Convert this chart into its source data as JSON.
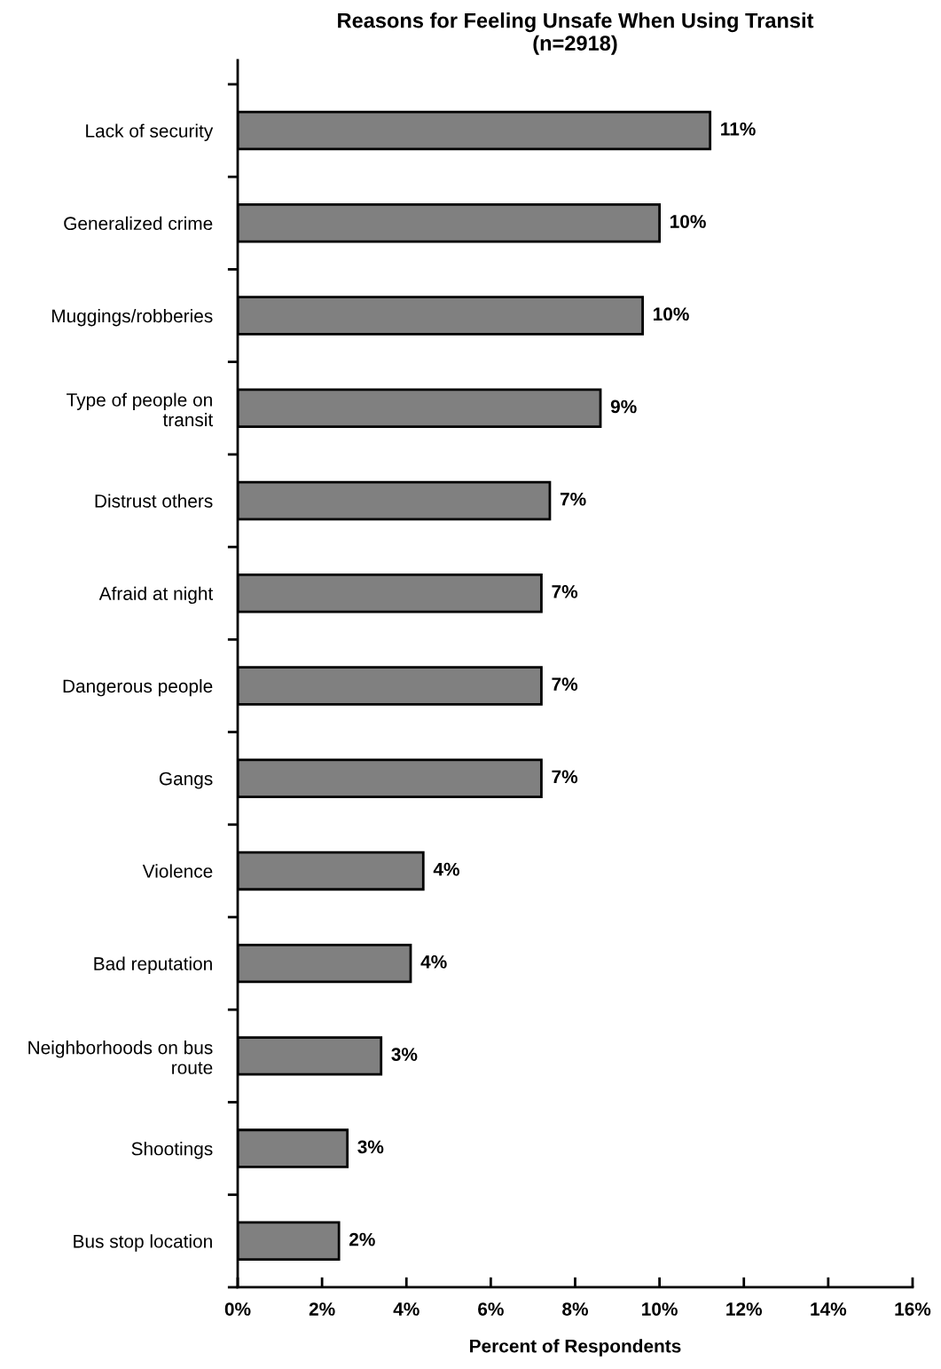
{
  "chart_data": {
    "type": "bar",
    "orientation": "horizontal",
    "title": "Reasons for Feeling Unsafe When Using Transit\n(n=2918)",
    "xlabel": "Percent of Respondents",
    "categories": [
      "Lack of security",
      "Generalized crime",
      "Muggings/robberies",
      "Type of people on\ntransit",
      "Distrust others",
      "Afraid at night",
      "Dangerous people",
      "Gangs",
      "Violence",
      "Bad reputation",
      "Neighborhoods on bus\nroute",
      "Shootings",
      "Bus stop location"
    ],
    "values": [
      11.2,
      10.0,
      9.6,
      8.6,
      7.4,
      7.2,
      7.2,
      7.2,
      4.4,
      4.1,
      3.4,
      2.6,
      2.4
    ],
    "value_labels": [
      "11%",
      "10%",
      "10%",
      "9%",
      "7%",
      "7%",
      "7%",
      "7%",
      "4%",
      "4%",
      "3%",
      "3%",
      "2%"
    ],
    "color": "#808080",
    "xlim": [
      0,
      16
    ],
    "xticks": [
      {
        "value": 0,
        "label": "0%"
      },
      {
        "value": 2,
        "label": "2%"
      },
      {
        "value": 4,
        "label": "4%"
      },
      {
        "value": 6,
        "label": "6%"
      },
      {
        "value": 8,
        "label": "8%"
      },
      {
        "value": 10,
        "label": "10%"
      },
      {
        "value": 12,
        "label": "12%"
      },
      {
        "value": 14,
        "label": "14%"
      },
      {
        "value": 16,
        "label": "16%"
      }
    ],
    "grid": false,
    "legend": false
  }
}
